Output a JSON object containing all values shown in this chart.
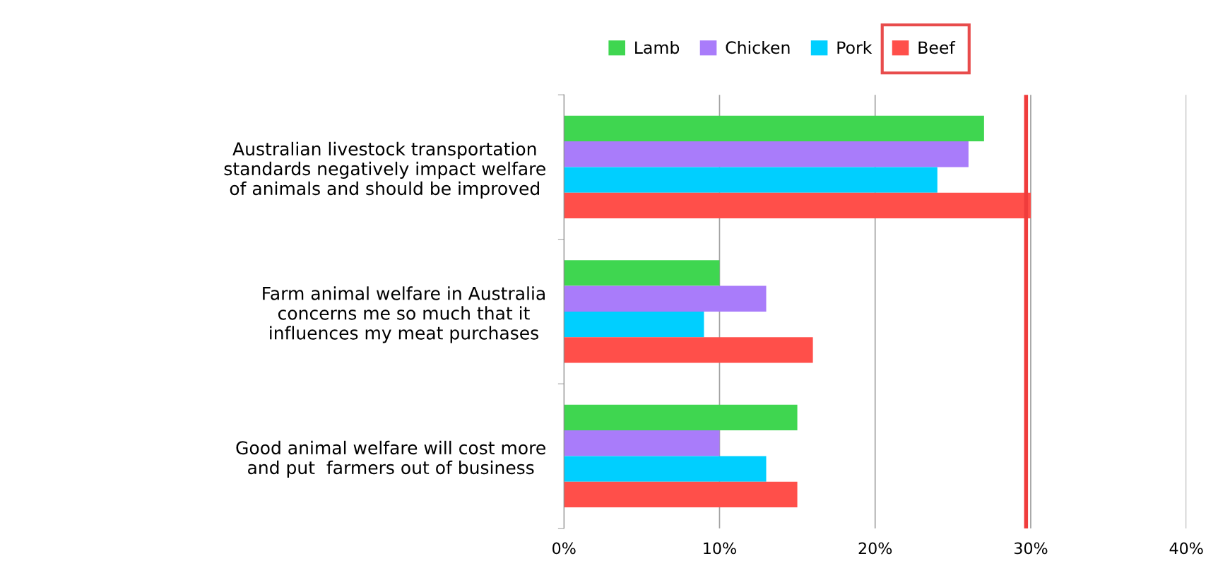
{
  "chart_data": {
    "type": "bar",
    "orientation": "horizontal",
    "categories": [
      "Australian livestock transportation\nstandards negatively impact welfare\nof animals and should be improved",
      "Farm animal welfare in Australia\nconcerns me so much that it\ninfluences my meat purchases",
      "Good animal welfare will cost more\nand put  farmers out of business"
    ],
    "series": [
      {
        "name": "Lamb",
        "color": "#3fd650",
        "values": [
          27,
          10,
          15
        ]
      },
      {
        "name": "Chicken",
        "color": "#a97cfa",
        "values": [
          26,
          13,
          10
        ]
      },
      {
        "name": "Pork",
        "color": "#00cfff",
        "values": [
          24,
          9,
          13
        ]
      },
      {
        "name": "Beef",
        "color": "#ff4f4a",
        "values": [
          30,
          16,
          15
        ]
      }
    ],
    "xlim": [
      0,
      40
    ],
    "xticks": [
      {
        "value": 0,
        "label": "0%"
      },
      {
        "value": 10,
        "label": "10%"
      },
      {
        "value": 20,
        "label": "20%"
      },
      {
        "value": 30,
        "label": "30%"
      },
      {
        "value": 40,
        "label": "40%"
      }
    ],
    "grid": "x",
    "legend": "top",
    "ref_lines": [
      {
        "axis": "x",
        "value": 29.7,
        "color": "#f03c3c"
      }
    ]
  }
}
